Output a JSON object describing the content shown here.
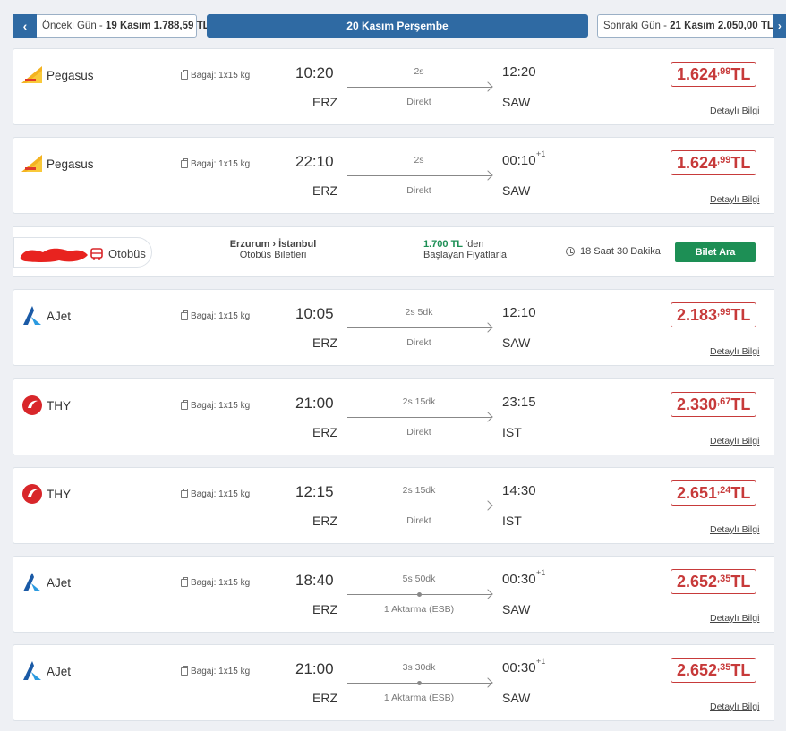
{
  "datebar": {
    "prev_prefix": "Önceki Gün - ",
    "prev_date": "19 Kasım 1.788,59 TL",
    "current": "20 Kasım Perşembe",
    "next_prefix": "Sonraki Gün - ",
    "next_date": "21 Kasım 2.050,00 TL"
  },
  "colors": {
    "primary": "#2f6aa3",
    "price_red": "#c73a3a",
    "bus_green": "#1d8f55"
  },
  "flights": [
    {
      "airline": "Pegasus",
      "logo": "pegasus-logo",
      "baggage": "Bagaj: 1x15 kg",
      "dep_time": "10:20",
      "dep_code": "ERZ",
      "duration": "2s",
      "stops": "Direkt",
      "arr_time": "12:20",
      "plus_day": "",
      "arr_code": "SAW",
      "price_main": "1.624",
      "price_dec": ",99",
      "currency": "TL",
      "detail": "Detaylı Bilgi"
    },
    {
      "airline": "Pegasus",
      "logo": "pegasus-logo",
      "baggage": "Bagaj: 1x15 kg",
      "dep_time": "22:10",
      "dep_code": "ERZ",
      "duration": "2s",
      "stops": "Direkt",
      "arr_time": "00:10",
      "plus_day": "+1",
      "arr_code": "SAW",
      "price_main": "1.624",
      "price_dec": ",99",
      "currency": "TL",
      "detail": "Detaylı Bilgi"
    },
    {
      "airline": "AJet",
      "logo": "ajet-logo",
      "baggage": "Bagaj: 1x15 kg",
      "dep_time": "10:05",
      "dep_code": "ERZ",
      "duration": "2s 5dk",
      "stops": "Direkt",
      "arr_time": "12:10",
      "plus_day": "",
      "arr_code": "SAW",
      "price_main": "2.183",
      "price_dec": ",99",
      "currency": "TL",
      "detail": "Detaylı Bilgi"
    },
    {
      "airline": "THY",
      "logo": "thy-logo",
      "baggage": "Bagaj: 1x15 kg",
      "dep_time": "21:00",
      "dep_code": "ERZ",
      "duration": "2s 15dk",
      "stops": "Direkt",
      "arr_time": "23:15",
      "plus_day": "",
      "arr_code": "IST",
      "price_main": "2.330",
      "price_dec": ",67",
      "currency": "TL",
      "detail": "Detaylı Bilgi"
    },
    {
      "airline": "THY",
      "logo": "thy-logo",
      "baggage": "Bagaj: 1x15 kg",
      "dep_time": "12:15",
      "dep_code": "ERZ",
      "duration": "2s 15dk",
      "stops": "Direkt",
      "arr_time": "14:30",
      "plus_day": "",
      "arr_code": "IST",
      "price_main": "2.651",
      "price_dec": ",24",
      "currency": "TL",
      "detail": "Detaylı Bilgi"
    },
    {
      "airline": "AJet",
      "logo": "ajet-logo",
      "baggage": "Bagaj: 1x15 kg",
      "dep_time": "18:40",
      "dep_code": "ERZ",
      "duration": "5s 50dk",
      "stops": "1 Aktarma (ESB)",
      "arr_time": "00:30",
      "plus_day": "+1",
      "arr_code": "SAW",
      "price_main": "2.652",
      "price_dec": ",35",
      "currency": "TL",
      "detail": "Detaylı Bilgi"
    },
    {
      "airline": "AJet",
      "logo": "ajet-logo",
      "baggage": "Bagaj: 1x15 kg",
      "dep_time": "21:00",
      "dep_code": "ERZ",
      "duration": "3s 30dk",
      "stops": "1 Aktarma (ESB)",
      "arr_time": "00:30",
      "plus_day": "+1",
      "arr_code": "SAW",
      "price_main": "2.652",
      "price_dec": ",35",
      "currency": "TL",
      "detail": "Detaylı Bilgi"
    }
  ],
  "bus": {
    "label": "Otobüs",
    "route_from": "Erzurum",
    "route_to": "İstanbul",
    "route_sub": "Otobüs Biletleri",
    "price": "1.700 TL",
    "price_suffix": "'den",
    "price_sub": "Başlayan Fiyatlarla",
    "duration": "18 Saat 30 Dakika",
    "button": "Bilet Ara"
  }
}
